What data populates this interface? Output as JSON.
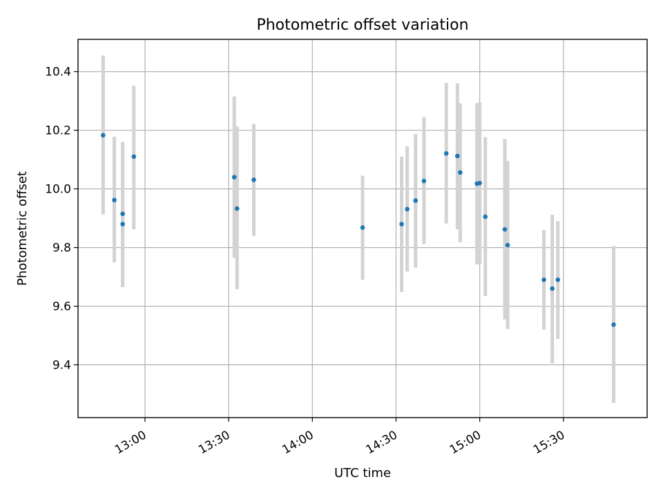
{
  "chart_data": {
    "type": "scatter",
    "title": "Photometric offset variation",
    "xlabel": "UTC time",
    "ylabel": "Photometric offset",
    "x_axis_type": "time",
    "xlim": [
      "12:36",
      "16:00"
    ],
    "ylim": [
      9.22,
      10.51
    ],
    "x_ticks": [
      "13:00",
      "13:30",
      "14:00",
      "14:30",
      "15:00",
      "15:30"
    ],
    "y_ticks": [
      9.4,
      9.6,
      9.8,
      10.0,
      10.2,
      10.4
    ],
    "y_tick_labels": [
      "9.4",
      "9.6",
      "9.8",
      "10.0",
      "10.2",
      "10.4"
    ],
    "grid": true,
    "point_color": "#1f77b4",
    "errorbar_color": "#d3d3d3",
    "points": [
      {
        "x": "12:45",
        "y": 10.183,
        "ylow": 9.913,
        "yhigh": 10.455
      },
      {
        "x": "12:49",
        "y": 9.962,
        "ylow": 9.75,
        "yhigh": 10.178
      },
      {
        "x": "12:52",
        "y": 9.88,
        "ylow": 9.683,
        "yhigh": 10.08
      },
      {
        "x": "12:52",
        "y": 9.915,
        "ylow": 9.665,
        "yhigh": 10.16
      },
      {
        "x": "12:56",
        "y": 10.11,
        "ylow": 9.862,
        "yhigh": 10.352
      },
      {
        "x": "13:32",
        "y": 10.04,
        "ylow": 9.765,
        "yhigh": 10.315
      },
      {
        "x": "13:33",
        "y": 9.933,
        "ylow": 9.658,
        "yhigh": 10.213
      },
      {
        "x": "13:39",
        "y": 10.031,
        "ylow": 9.84,
        "yhigh": 10.222
      },
      {
        "x": "14:18",
        "y": 9.868,
        "ylow": 9.69,
        "yhigh": 10.045
      },
      {
        "x": "14:32",
        "y": 9.88,
        "ylow": 9.648,
        "yhigh": 10.11
      },
      {
        "x": "14:34",
        "y": 9.931,
        "ylow": 9.718,
        "yhigh": 10.145
      },
      {
        "x": "14:37",
        "y": 9.96,
        "ylow": 9.732,
        "yhigh": 10.187
      },
      {
        "x": "14:40",
        "y": 10.027,
        "ylow": 9.812,
        "yhigh": 10.245
      },
      {
        "x": "14:48",
        "y": 10.121,
        "ylow": 9.882,
        "yhigh": 10.362
      },
      {
        "x": "14:52",
        "y": 10.112,
        "ylow": 9.862,
        "yhigh": 10.36
      },
      {
        "x": "14:53",
        "y": 10.056,
        "ylow": 9.818,
        "yhigh": 10.292
      },
      {
        "x": "14:59",
        "y": 10.018,
        "ylow": 9.742,
        "yhigh": 10.292
      },
      {
        "x": "15:00",
        "y": 10.02,
        "ylow": 9.745,
        "yhigh": 10.295
      },
      {
        "x": "15:02",
        "y": 9.905,
        "ylow": 9.635,
        "yhigh": 10.177
      },
      {
        "x": "15:09",
        "y": 9.862,
        "ylow": 9.555,
        "yhigh": 10.17
      },
      {
        "x": "15:10",
        "y": 9.808,
        "ylow": 9.522,
        "yhigh": 10.095
      },
      {
        "x": "15:23",
        "y": 9.69,
        "ylow": 9.52,
        "yhigh": 9.86
      },
      {
        "x": "15:26",
        "y": 9.66,
        "ylow": 9.405,
        "yhigh": 9.912
      },
      {
        "x": "15:28",
        "y": 9.69,
        "ylow": 9.488,
        "yhigh": 9.89
      },
      {
        "x": "15:48",
        "y": 9.537,
        "ylow": 9.27,
        "yhigh": 9.805
      }
    ]
  }
}
